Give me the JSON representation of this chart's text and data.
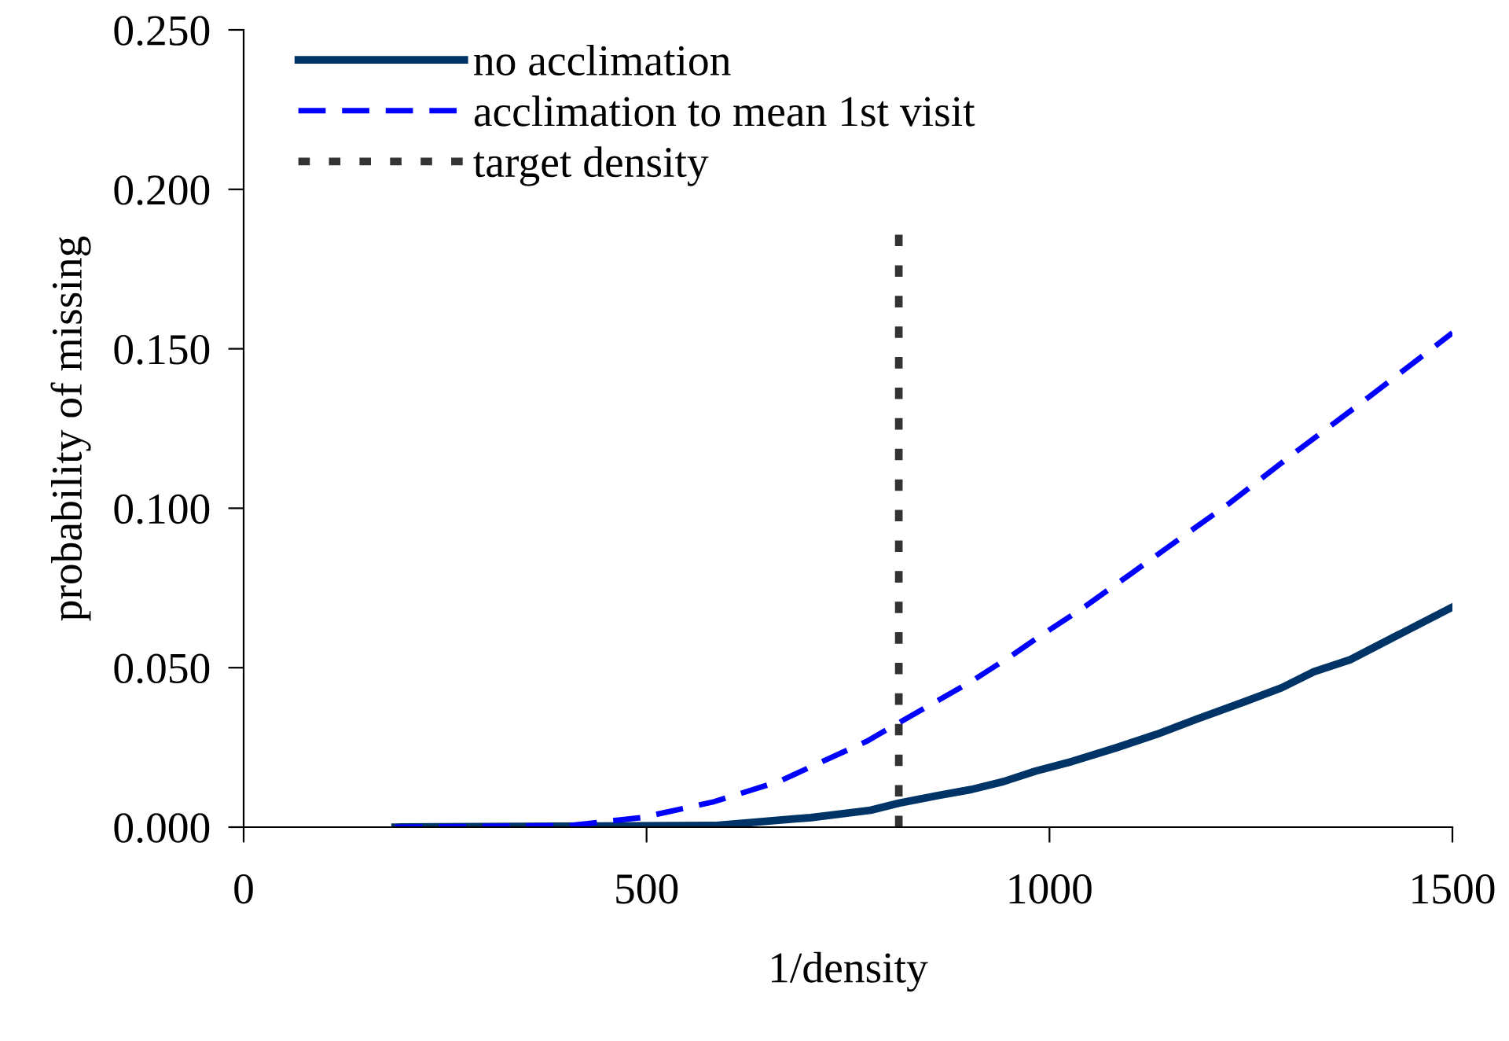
{
  "chart_data": {
    "type": "line",
    "xlabel": "1/density",
    "ylabel": "probability of missing",
    "xlim": [
      0,
      1500
    ],
    "xticks": [
      0,
      500,
      1000,
      1500
    ],
    "ylim": [
      0,
      0.25
    ],
    "yticks": [
      {
        "value": 0,
        "label": "0.000"
      },
      {
        "value": 0.05,
        "label": "0.050"
      },
      {
        "value": 0.1,
        "label": "0.100"
      },
      {
        "value": 0.15,
        "label": "0.150"
      },
      {
        "value": 0.2,
        "label": "0.200"
      },
      {
        "value": 0.25,
        "label": "0.250"
      }
    ],
    "grid": false,
    "legend": "top left",
    "marker": "none",
    "series": [
      {
        "name": "no acclimation",
        "color": "#003366",
        "line_style": "solid",
        "x": [
          188,
          584,
          704,
          778,
          813,
          863,
          903,
          943,
          983,
          1028,
          1083,
          1133,
          1183,
          1243,
          1288,
          1328,
          1373,
          1500
        ],
        "values": [
          0,
          0.0005,
          0.003,
          0.0053,
          0.0075,
          0.01,
          0.0118,
          0.0143,
          0.0176,
          0.0206,
          0.0249,
          0.0291,
          0.0339,
          0.0394,
          0.0437,
          0.0487,
          0.0525,
          0.069
        ]
      },
      {
        "name": "acclimation to mean 1st visit",
        "color": "#0000ff",
        "line_style": "dashed",
        "x": [
          188,
          404,
          494,
          584,
          664,
          773,
          813,
          903,
          953,
          983,
          1043,
          1103,
          1163,
          1223,
          1297,
          1395,
          1500
        ],
        "values": [
          0,
          0.0005,
          0.003,
          0.008,
          0.0143,
          0.0269,
          0.0327,
          0.0457,
          0.0538,
          0.059,
          0.069,
          0.0798,
          0.0907,
          0.1015,
          0.116,
          0.1346,
          0.155
        ]
      },
      {
        "name": "target density",
        "color": "#333333",
        "line_style": "dotted",
        "x": [
          813,
          813
        ],
        "values": [
          0,
          0.186
        ]
      }
    ]
  }
}
